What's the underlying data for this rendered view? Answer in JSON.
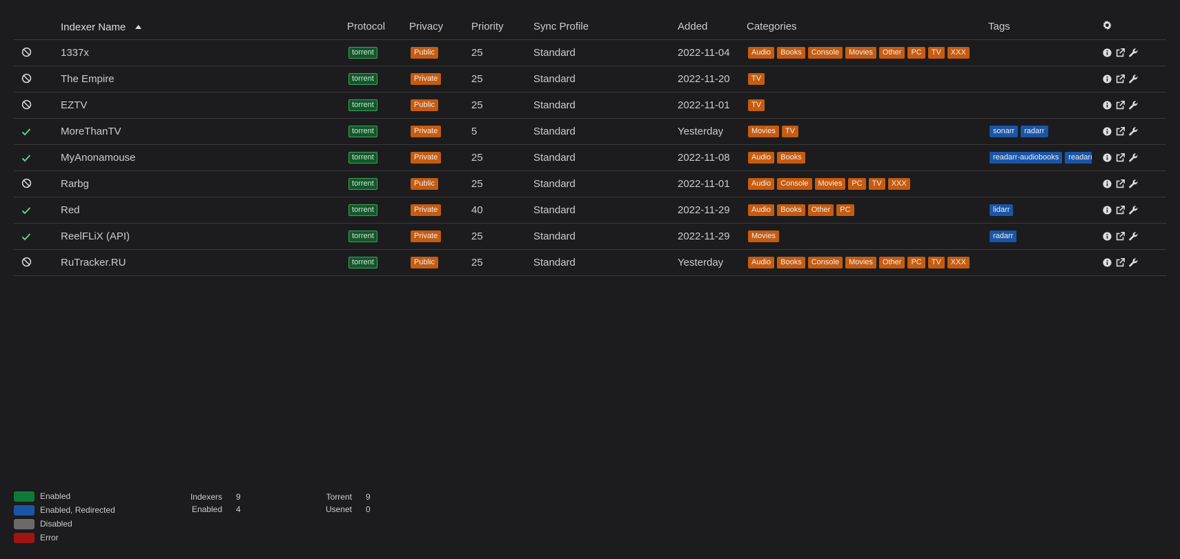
{
  "columns": {
    "name": "Indexer Name",
    "protocol": "Protocol",
    "privacy": "Privacy",
    "priority": "Priority",
    "sync_profile": "Sync Profile",
    "added": "Added",
    "categories": "Categories",
    "tags": "Tags"
  },
  "rows": [
    {
      "status": "disabled",
      "name": "1337x",
      "protocol": "torrent",
      "privacy": "Public",
      "priority": "25",
      "sync_profile": "Standard",
      "added": "2022-11-04",
      "categories": [
        "Audio",
        "Books",
        "Console",
        "Movies",
        "Other",
        "PC",
        "TV",
        "XXX"
      ],
      "tags": []
    },
    {
      "status": "disabled",
      "name": "The Empire",
      "protocol": "torrent",
      "privacy": "Private",
      "priority": "25",
      "sync_profile": "Standard",
      "added": "2022-11-20",
      "categories": [
        "TV"
      ],
      "tags": []
    },
    {
      "status": "disabled",
      "name": "EZTV",
      "protocol": "torrent",
      "privacy": "Public",
      "priority": "25",
      "sync_profile": "Standard",
      "added": "2022-11-01",
      "categories": [
        "TV"
      ],
      "tags": []
    },
    {
      "status": "enabled",
      "name": "MoreThanTV",
      "protocol": "torrent",
      "privacy": "Private",
      "priority": "5",
      "sync_profile": "Standard",
      "added": "Yesterday",
      "categories": [
        "Movies",
        "TV"
      ],
      "tags": [
        "sonarr",
        "radarr"
      ]
    },
    {
      "status": "enabled",
      "name": "MyAnonamouse",
      "protocol": "torrent",
      "privacy": "Private",
      "priority": "25",
      "sync_profile": "Standard",
      "added": "2022-11-08",
      "categories": [
        "Audio",
        "Books"
      ],
      "tags": [
        "readarr-audiobooks",
        "readarr"
      ]
    },
    {
      "status": "disabled",
      "name": "Rarbg",
      "protocol": "torrent",
      "privacy": "Public",
      "priority": "25",
      "sync_profile": "Standard",
      "added": "2022-11-01",
      "categories": [
        "Audio",
        "Console",
        "Movies",
        "PC",
        "TV",
        "XXX"
      ],
      "tags": []
    },
    {
      "status": "enabled",
      "name": "Red",
      "protocol": "torrent",
      "privacy": "Private",
      "priority": "40",
      "sync_profile": "Standard",
      "added": "2022-11-29",
      "categories": [
        "Audio",
        "Books",
        "Other",
        "PC"
      ],
      "tags": [
        "lidarr"
      ]
    },
    {
      "status": "enabled",
      "name": "ReelFLiX (API)",
      "protocol": "torrent",
      "privacy": "Private",
      "priority": "25",
      "sync_profile": "Standard",
      "added": "2022-11-29",
      "categories": [
        "Movies"
      ],
      "tags": [
        "radarr"
      ]
    },
    {
      "status": "disabled",
      "name": "RuTracker.RU",
      "protocol": "torrent",
      "privacy": "Public",
      "priority": "25",
      "sync_profile": "Standard",
      "added": "Yesterday",
      "categories": [
        "Audio",
        "Books",
        "Console",
        "Movies",
        "Other",
        "PC",
        "TV",
        "XXX"
      ],
      "tags": []
    }
  ],
  "legend": [
    {
      "label": "Enabled",
      "color": "#0f7a37"
    },
    {
      "label": "Enabled, Redirected",
      "color": "#1a56a8"
    },
    {
      "label": "Disabled",
      "color": "#6a6a6a"
    },
    {
      "label": "Error",
      "color": "#a01414"
    }
  ],
  "stats": {
    "indexers_label": "Indexers",
    "indexers": "9",
    "enabled_label": "Enabled",
    "enabled": "4",
    "torrent_label": "Torrent",
    "torrent": "9",
    "usenet_label": "Usenet",
    "usenet": "0"
  },
  "colors": {
    "status_enabled": "#5fd38d",
    "status_disabled": "#dddddd"
  },
  "icons": {
    "enabled": "check-icon",
    "disabled": "ban-icon",
    "actions": [
      "info-icon",
      "external-link-icon",
      "wrench-icon"
    ],
    "header": "gear-icon",
    "sort": "caret-up-icon"
  }
}
